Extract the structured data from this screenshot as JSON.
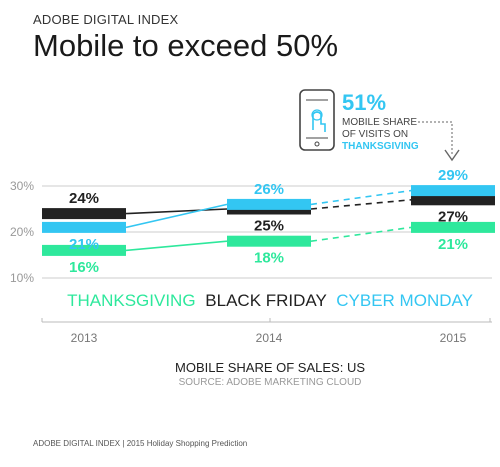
{
  "header": {
    "eyebrow": "ADOBE DIGITAL INDEX",
    "title": "Mobile to exceed 50%"
  },
  "callout": {
    "value": "51%",
    "line1": "MOBILE SHARE",
    "line2": "OF VISITS ON",
    "line3": "THANKSGIVING",
    "icon": "mobile-phone-touch-icon"
  },
  "legend": {
    "thanksgiving": "THANKSGIVING",
    "black_friday": "BLACK FRIDAY",
    "cyber_monday": "CYBER MONDAY"
  },
  "colors": {
    "thanksgiving": "#2ee89c",
    "black_friday": "#222222",
    "cyber_monday": "#33c6f2",
    "grid": "#cccccc",
    "axis_text": "#999999"
  },
  "chart_data": {
    "type": "line",
    "categories": [
      "2013",
      "2014",
      "2015"
    ],
    "yticks": [
      "30%",
      "20%",
      "10%"
    ],
    "ylim": [
      10,
      30
    ],
    "series": [
      {
        "name": "THANKSGIVING",
        "key": "thanksgiving",
        "values": [
          16,
          18,
          21
        ],
        "labels": [
          "16%",
          "18%",
          "21%"
        ]
      },
      {
        "name": "BLACK FRIDAY",
        "key": "black_friday",
        "values": [
          24,
          25,
          27
        ],
        "labels": [
          "24%",
          "25%",
          "27%"
        ]
      },
      {
        "name": "CYBER MONDAY",
        "key": "cyber_monday",
        "values": [
          21,
          26,
          29
        ],
        "labels": [
          "21%",
          "26%",
          "29%"
        ]
      }
    ],
    "projected_from_index": 1,
    "xlabel": "MOBILE SHARE OF SALES: US",
    "source": "SOURCE: ADOBE MARKETING CLOUD"
  },
  "footer": {
    "org": "ADOBE DIGITAL INDEX",
    "sep": "|",
    "note": "2015 Holiday Shopping Prediction"
  }
}
